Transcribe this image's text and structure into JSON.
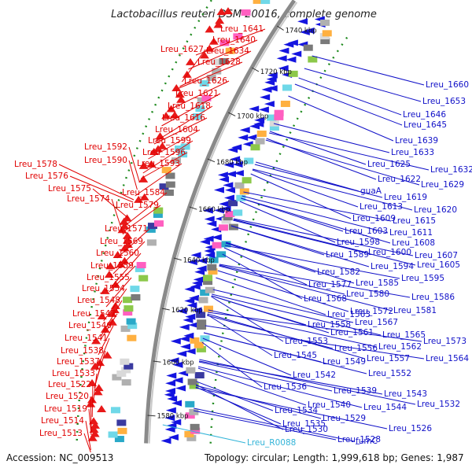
{
  "title": "Lactobacillus reuteri DSM 20016, complete genome",
  "footer": {
    "accession": "Accession: NC_009513",
    "topology": "Topology: circular; Length: 1,999,618 bp; Genes: 1,987"
  },
  "colors": {
    "left_label": "#e00000",
    "right_label": "#1010c8",
    "rna_label": "#33b4d8",
    "backbone": "#8a8a8a",
    "gc_dots": "#1e8a1e"
  },
  "ticks": [
    "1740 kbp",
    "1720 kbp",
    "1700 kbp",
    "1680 kbp",
    "1660 kbp",
    "1640 kbp",
    "1620 kbp",
    "1600 kbp",
    "1580 kbp"
  ],
  "left_labels": [
    "Lreu_1641",
    "Lreu_1640",
    "Lreu_1627",
    "Lreu_1634",
    "Lreu_1628",
    "Lreu_1626",
    "Lreu_1621",
    "Lreu_1618",
    "Lreu_1616",
    "Lreu_1604",
    "Lreu_1599",
    "Lreu_1592",
    "Lreu_1596",
    "Lreu_1590",
    "Lreu_1593",
    "Lreu_1578",
    "Lreu_1576",
    "Lreu_1575",
    "Lreu_1584",
    "Lreu_1574",
    "Lreu_1579",
    "Lreu_1571",
    "Lreu_1569",
    "Lreu_1560",
    "Lreu_1559",
    "Lreu_1555",
    "Lreu_1554",
    "Lreu_1548",
    "Lreu_1547",
    "Lreu_1546",
    "Lreu_1541",
    "Lreu_1538",
    "Lreu_1537",
    "Lreu_1533",
    "Lreu_1522",
    "Lreu_1520",
    "Lreu_1519",
    "Lreu_1514",
    "Lreu_1513"
  ],
  "right_labels": [
    "Lreu_1660",
    "Lreu_1653",
    "Lreu_1646",
    "Lreu_1645",
    "Lreu_1639",
    "Lreu_1633",
    "Lreu_1625",
    "Lreu_1632",
    "Lreu_1622",
    "Lreu_1629",
    "guaA",
    "Lreu_1619",
    "Lreu_1613",
    "Lreu_1620",
    "Lreu_1609",
    "Lreu_1615",
    "Lreu_1603",
    "Lreu_1611",
    "Lreu_1598",
    "Lreu_1608",
    "Lreu_1589",
    "Lreu_1600",
    "Lreu_1607",
    "Lreu_1594",
    "Lreu_1605",
    "Lreu_1582",
    "Lreu_1595",
    "Lreu_1577",
    "Lreu_1585",
    "Lreu_1568",
    "Lreu_1580",
    "Lreu_1586",
    "Lreu_1563",
    "Lreu_1572",
    "Lreu_1581",
    "Lreu_1558",
    "Lreu_1567",
    "Lreu_1561",
    "Lreu_1565",
    "Lreu_1553",
    "Lreu_1573",
    "Lreu_1556",
    "Lreu_1562",
    "Lreu_1545",
    "Lreu_1557",
    "Lreu_1549",
    "Lreu_1564",
    "Lreu_1542",
    "Lreu_1552",
    "Lreu_1536",
    "Lreu_1539",
    "Lreu_1543",
    "Lreu_1540",
    "Lreu_1544",
    "Lreu_1532",
    "Lreu_1534",
    "Lreu_1529",
    "Lreu_1535",
    "Lreu_1526",
    "Lreu_1530",
    "Lreu_1528",
    "fumC"
  ],
  "rna_labels": [
    "Lreu_R0088"
  ]
}
